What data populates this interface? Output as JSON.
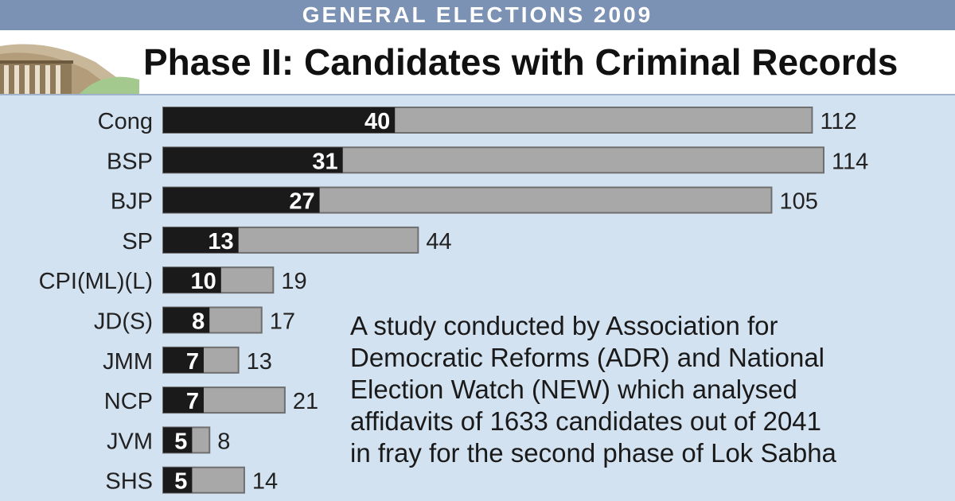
{
  "header": {
    "banner": "GENERAL ELECTIONS 2009",
    "title": "Phase II: Candidates with Criminal Records"
  },
  "colors": {
    "banner_bg": "#7b92b5",
    "background": "#d3e2f1",
    "criminal_bar": "#1a1a1a",
    "total_bar": "#a8a8a8"
  },
  "chart_data": {
    "type": "bar",
    "orientation": "horizontal",
    "stacked": "overlay",
    "categories": [
      "Cong",
      "BSP",
      "BJP",
      "SP",
      "CPI(ML)(L)",
      "JD(S)",
      "JMM",
      "NCP",
      "JVM",
      "SHS"
    ],
    "series": [
      {
        "values": [
          40,
          31,
          27,
          13,
          10,
          8,
          7,
          7,
          5,
          5
        ]
      },
      {
        "values": [
          112,
          114,
          105,
          44,
          19,
          17,
          13,
          21,
          8,
          14
        ]
      }
    ],
    "xlim": [
      0,
      114
    ]
  },
  "description": {
    "lines": [
      "A study conducted by Association for",
      "Democratic Reforms (ADR) and National",
      "Election Watch (NEW) which analysed",
      "affidavits of 1633 candidates out of 2041",
      "in fray for the second phase of Lok Sabha"
    ]
  }
}
